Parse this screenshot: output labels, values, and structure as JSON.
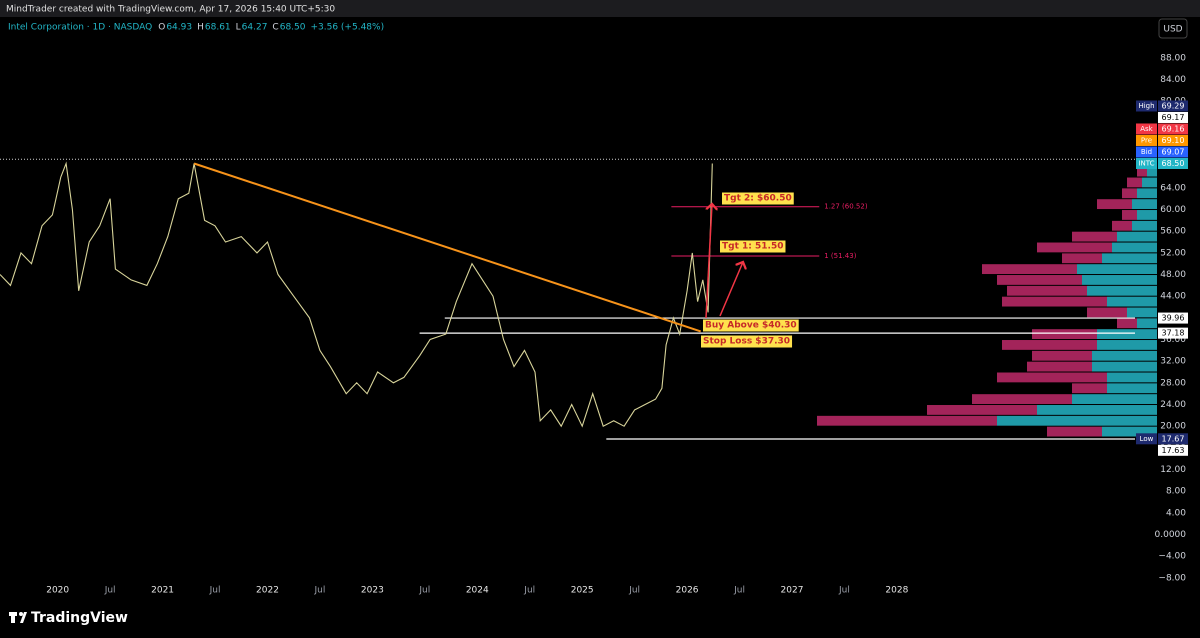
{
  "header": {
    "credit": "MindTrader created with TradingView.com, Apr 17, 2026 15:40 UTC+5:30",
    "symbol": "Intel Corporation · 1D · NASDAQ",
    "ohlc": [
      {
        "key": "O",
        "value": 64.93,
        "label": "64.93"
      },
      {
        "key": "H",
        "value": 68.61,
        "label": "68.61"
      },
      {
        "key": "L",
        "value": 64.27,
        "label": "64.27"
      },
      {
        "key": "C",
        "value": 68.5,
        "label": "68.50"
      }
    ],
    "change": "+3.56 (+5.48%)",
    "currency": "USD"
  },
  "chart_data": {
    "type": "line",
    "color": "#d8d49a",
    "x": [
      2019.45,
      2019.55,
      2019.65,
      2019.75,
      2019.85,
      2019.95,
      2020.03,
      2020.08,
      2020.14,
      2020.2,
      2020.3,
      2020.4,
      2020.5,
      2020.55,
      2020.7,
      2020.85,
      2020.95,
      2021.05,
      2021.15,
      2021.25,
      2021.3,
      2021.4,
      2021.5,
      2021.6,
      2021.75,
      2021.9,
      2022.0,
      2022.1,
      2022.25,
      2022.4,
      2022.5,
      2022.6,
      2022.75,
      2022.85,
      2022.95,
      2023.05,
      2023.2,
      2023.3,
      2023.45,
      2023.55,
      2023.7,
      2023.8,
      2023.95,
      2024.05,
      2024.15,
      2024.25,
      2024.35,
      2024.45,
      2024.55,
      2024.6,
      2024.7,
      2024.8,
      2024.9,
      2025.0,
      2025.1,
      2025.2,
      2025.3,
      2025.4,
      2025.5,
      2025.6,
      2025.7,
      2025.76,
      2025.8,
      2025.87,
      2025.93,
      2026.0,
      2026.05,
      2026.1,
      2026.15,
      2026.2,
      2026.22,
      2026.24
    ],
    "values": [
      48,
      46,
      52,
      50,
      57,
      59,
      66,
      68.5,
      60,
      45,
      54,
      57,
      62,
      49,
      47,
      46,
      50,
      55,
      62,
      63,
      68.5,
      58,
      57,
      54,
      55,
      52,
      54,
      48,
      44,
      40,
      34,
      31,
      26,
      28,
      26,
      30,
      28,
      29,
      33,
      36,
      37,
      43,
      50,
      47,
      44,
      36,
      31,
      34,
      30,
      21,
      23,
      20,
      24,
      20,
      26,
      20,
      21,
      20,
      23,
      24,
      25,
      27,
      35,
      40,
      37,
      45,
      52,
      43,
      47,
      41,
      55,
      68.5
    ],
    "xlim": [
      2019.45,
      2030.27
    ],
    "ylim": [
      -8.4,
      91.3
    ],
    "xticks": [
      {
        "value": 2020,
        "label": "2020"
      },
      {
        "value": 2020.5,
        "label": "Jul"
      },
      {
        "value": 2021,
        "label": "2021"
      },
      {
        "value": 2021.5,
        "label": "Jul"
      },
      {
        "value": 2022,
        "label": "2022"
      },
      {
        "value": 2022.5,
        "label": "Jul"
      },
      {
        "value": 2023,
        "label": "2023"
      },
      {
        "value": 2023.5,
        "label": "Jul"
      },
      {
        "value": 2024,
        "label": "2024"
      },
      {
        "value": 2024.5,
        "label": "Jul"
      },
      {
        "value": 2025,
        "label": "2025"
      },
      {
        "value": 2025.5,
        "label": "Jul"
      },
      {
        "value": 2026,
        "label": "2026"
      },
      {
        "value": 2026.5,
        "label": "Jul"
      },
      {
        "value": 2027,
        "label": "2027"
      },
      {
        "value": 2027.5,
        "label": "Jul"
      },
      {
        "value": 2028,
        "label": "2028"
      }
    ],
    "yticks": [
      {
        "value": 88,
        "label": "88.00"
      },
      {
        "value": 84,
        "label": "84.00"
      },
      {
        "value": 80,
        "label": "80.00"
      },
      {
        "value": 64,
        "label": "64.00"
      },
      {
        "value": 60,
        "label": "60.00"
      },
      {
        "value": 56,
        "label": "56.00"
      },
      {
        "value": 52,
        "label": "52.00"
      },
      {
        "value": 48,
        "label": "48.00"
      },
      {
        "value": 44,
        "label": "44.00"
      },
      {
        "value": 36,
        "label": "36.00"
      },
      {
        "value": 32,
        "label": "32.00"
      },
      {
        "value": 28,
        "label": "28.00"
      },
      {
        "value": 24,
        "label": "24.00"
      },
      {
        "value": 20,
        "label": "20.00"
      },
      {
        "value": 16,
        "label": "16.00"
      },
      {
        "value": 12,
        "label": "12.00"
      },
      {
        "value": 8,
        "label": "8.00"
      },
      {
        "value": 4,
        "label": "4.00"
      },
      {
        "value": 0,
        "label": "0.0000"
      },
      {
        "value": -4,
        "label": "−4.00"
      },
      {
        "value": -8,
        "label": "−8.00"
      }
    ],
    "trendline": {
      "x": [
        2021.3,
        2026.13
      ],
      "values": [
        68.5,
        37.5
      ],
      "color": "#f7931a"
    },
    "levels": [
      {
        "value": 39.96,
        "from": 2023.69
      },
      {
        "value": 37.18,
        "from": 2023.45
      },
      {
        "value": 17.63,
        "from": 2025.23
      }
    ],
    "fib_levels": [
      {
        "value": 60.52,
        "label": "1.27 (60.52)"
      },
      {
        "value": 51.43,
        "label": "1 (51.43)"
      }
    ],
    "fib_from": 2025.85,
    "fib_to": 2027.26,
    "fib_color": "#e91e63",
    "price_tags": [
      {
        "name": "High",
        "value": 69.29,
        "label": "69.29",
        "color": "#1e2a6e"
      },
      {
        "value": 69.17,
        "label": "69.17",
        "color": "#ffffff"
      },
      {
        "name": "Ask",
        "value": 69.16,
        "label": "69.16",
        "color": "#f23645"
      },
      {
        "name": "Pre",
        "value": 69.1,
        "label": "69.10",
        "color": "#ff9800"
      },
      {
        "name": "Bid",
        "value": 69.07,
        "label": "69.07",
        "color": "#2962ff"
      },
      {
        "name": "INTC",
        "value": 68.5,
        "label": "68.50",
        "color": "#22b5c6"
      },
      {
        "value": 39.96,
        "label": "39.96",
        "color": "#ffffff"
      },
      {
        "value": 37.18,
        "label": "37.18",
        "color": "#ffffff"
      },
      {
        "name": "Low",
        "value": 17.67,
        "label": "17.67",
        "color": "#1e2a6e"
      },
      {
        "value": 17.63,
        "label": "17.63",
        "color": "#ffffff"
      }
    ],
    "annotations": [
      "Tgt 2: $60.50",
      "Tgt 1: 51.50",
      "Buy Above $40.30",
      "Stop Loss $37.30"
    ],
    "volume_profile": {
      "up_color": "#1f9aa8",
      "down_color": "#a3245a",
      "prices": [
        67,
        65,
        63,
        61,
        59,
        57,
        55,
        53,
        51,
        49,
        47,
        45,
        43,
        41,
        39,
        37,
        35,
        33,
        31,
        29,
        27,
        25,
        23,
        21,
        19
      ],
      "up": [
        10,
        15,
        20,
        25,
        20,
        25,
        40,
        45,
        55,
        80,
        75,
        70,
        50,
        30,
        20,
        60,
        60,
        65,
        65,
        50,
        50,
        85,
        120,
        160,
        55
      ],
      "down": [
        10,
        15,
        15,
        35,
        15,
        20,
        45,
        75,
        40,
        95,
        85,
        80,
        105,
        40,
        20,
        65,
        95,
        60,
        65,
        110,
        35,
        100,
        110,
        180,
        55
      ]
    }
  },
  "footer": {
    "brand": "TradingView"
  }
}
